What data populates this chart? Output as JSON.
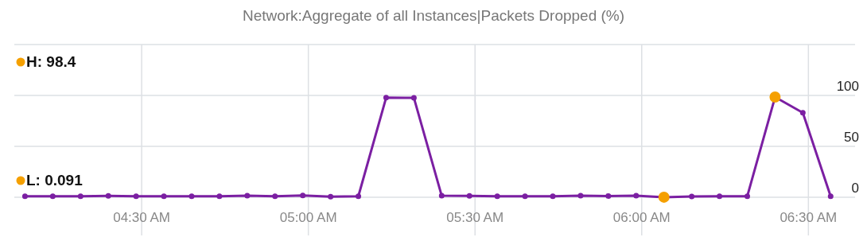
{
  "chart_data": {
    "type": "line",
    "title": "Network:Aggregate of all Instances|Packets Dropped (%)",
    "x": [
      4.15,
      4.2333,
      4.3167,
      4.4,
      4.4833,
      4.5667,
      4.65,
      4.7333,
      4.8167,
      4.9,
      4.9833,
      5.0667,
      5.15,
      5.2333,
      5.3167,
      5.4,
      5.4833,
      5.5667,
      5.65,
      5.7333,
      5.8167,
      5.9,
      5.9833,
      6.0667,
      6.15,
      6.2333,
      6.3167,
      6.4,
      6.4833,
      6.5667
    ],
    "series": [
      {
        "color": "#7b1fa2",
        "marker": "circle",
        "values": [
          1,
          1,
          1,
          1.3,
          1,
          1,
          1,
          1,
          1.5,
          1,
          1.8,
          0.5,
          1,
          97.8,
          97.6,
          1.5,
          1.3,
          1,
          1,
          1,
          1.5,
          1.2,
          1.5,
          0.091,
          0.8,
          1,
          1,
          98.4,
          83,
          1
        ]
      },
      {
        "type": "scatter",
        "color": "#f5a000",
        "marker": "circle",
        "values": [
          null,
          null,
          null,
          null,
          null,
          null,
          null,
          null,
          null,
          null,
          null,
          null,
          null,
          null,
          null,
          null,
          null,
          null,
          null,
          null,
          null,
          null,
          null,
          0.091,
          null,
          null,
          null,
          98.4,
          null,
          null
        ]
      }
    ],
    "annotations": [
      "H: 98.4",
      "L: 0.091"
    ],
    "xlim": [
      4.118,
      6.64
    ],
    "xticks": [
      {
        "value": 4.5,
        "label": "04:30 AM"
      },
      {
        "value": 5,
        "label": "05:00 AM"
      },
      {
        "value": 5.5,
        "label": "05:30 AM"
      },
      {
        "value": 6,
        "label": "06:00 AM"
      },
      {
        "value": 6.5,
        "label": "06:30 AM"
      }
    ],
    "ylim": [
      0,
      150
    ],
    "yticks": [
      0,
      50,
      100,
      {
        "value": 150,
        "label": null
      }
    ],
    "grid": true,
    "line_style": "solid"
  }
}
